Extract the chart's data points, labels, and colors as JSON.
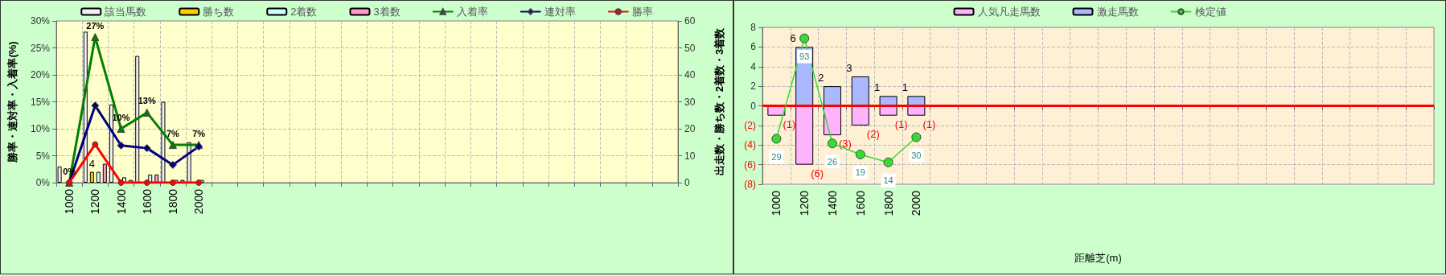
{
  "chart_data": [
    {
      "type": "bar",
      "ylabel": "勝率・連対率・入着率(%)",
      "y2label": "出走数・勝ち数・2着数・3着数",
      "categories": [
        "1000",
        "1200",
        "1400",
        "1600",
        "1800",
        "2000",
        null,
        null,
        null,
        null,
        null,
        null,
        null,
        null,
        null,
        null,
        null,
        null,
        null,
        null,
        null,
        null,
        null,
        null
      ],
      "series": [
        {
          "name": "該当馬数",
          "axis": "y2",
          "color": "#f2f2f2",
          "values": [
            6,
            56,
            29,
            47,
            30,
            15,
            null,
            null,
            null,
            null,
            null,
            null,
            null,
            null,
            null,
            null,
            null,
            null,
            null,
            null,
            null,
            null,
            null,
            null
          ]
        },
        {
          "name": "勝ち数",
          "axis": "y2",
          "color": "#ffcc00",
          "values": [
            0,
            4,
            0,
            0,
            0,
            0,
            null,
            null,
            null,
            null,
            null,
            null,
            null,
            null,
            null,
            null,
            null,
            null,
            null,
            null,
            null,
            null,
            null,
            null
          ],
          "value_labels": [
            null,
            "4",
            null,
            null,
            null,
            null,
            null,
            null,
            null,
            null,
            null,
            null,
            null,
            null,
            null,
            null,
            null,
            null,
            null,
            null,
            null,
            null,
            null,
            null
          ]
        },
        {
          "name": "2着数",
          "axis": "y2",
          "color": "#ccffff",
          "values": [
            0,
            4,
            2,
            3,
            1,
            1,
            null,
            null,
            null,
            null,
            null,
            null,
            null,
            null,
            null,
            null,
            null,
            null,
            null,
            null,
            null,
            null,
            null,
            null
          ]
        },
        {
          "name": "3着数",
          "axis": "y2",
          "color": "#ff99cc",
          "values": [
            0,
            7,
            1,
            3,
            1,
            0,
            null,
            null,
            null,
            null,
            null,
            null,
            null,
            null,
            null,
            null,
            null,
            null,
            null,
            null,
            null,
            null,
            null,
            null
          ]
        },
        {
          "name": "入着率",
          "type": "line",
          "marker": "triangle",
          "color": "#008000",
          "values": [
            0,
            27,
            10,
            13,
            7,
            7,
            null,
            null,
            null,
            null,
            null,
            null,
            null,
            null,
            null,
            null,
            null,
            null,
            null,
            null,
            null,
            null,
            null,
            null
          ],
          "value_labels": [
            "0%",
            "27%",
            "10%",
            "13%",
            "7%",
            "7%",
            null,
            null,
            null,
            null,
            null,
            null,
            null,
            null,
            null,
            null,
            null,
            null,
            null,
            null,
            null,
            null,
            null,
            null
          ]
        },
        {
          "name": "連対率",
          "type": "line",
          "marker": "diamond",
          "color": "#000080",
          "values": [
            0,
            14.3,
            6.9,
            6.4,
            3.3,
            6.7,
            null,
            null,
            null,
            null,
            null,
            null,
            null,
            null,
            null,
            null,
            null,
            null,
            null,
            null,
            null,
            null,
            null,
            null
          ]
        },
        {
          "name": "勝率",
          "type": "line",
          "marker": "circle",
          "color": "#ff0000",
          "values": [
            0,
            7.1,
            0,
            0,
            0,
            0,
            null,
            null,
            null,
            null,
            null,
            null,
            null,
            null,
            null,
            null,
            null,
            null,
            null,
            null,
            null,
            null,
            null,
            null
          ]
        }
      ],
      "ylim": [
        0,
        30
      ],
      "yticks": [
        {
          "value": 0,
          "label": "0%"
        },
        {
          "value": 5,
          "label": "5%"
        },
        {
          "value": 10,
          "label": "10%"
        },
        {
          "value": 15,
          "label": "15%"
        },
        {
          "value": 20,
          "label": "20%"
        },
        {
          "value": 25,
          "label": "25%"
        },
        {
          "value": 30,
          "label": "30%"
        }
      ],
      "y2lim": [
        0,
        60
      ],
      "y2ticks": [
        0,
        10,
        20,
        30,
        40,
        50,
        60
      ],
      "grid": true,
      "legend": "top"
    },
    {
      "type": "bar",
      "xlabel": "距離芝(m)",
      "stacked": true,
      "categories": [
        "1000",
        "1200",
        "1400",
        "1600",
        "1800",
        "2000",
        null,
        null,
        null,
        null,
        null,
        null,
        null,
        null,
        null,
        null,
        null,
        null,
        null,
        null,
        null,
        null,
        null,
        null
      ],
      "series": [
        {
          "name": "人気凡走馬数",
          "color": "#ffb3ff",
          "values": [
            -1,
            -6,
            -3,
            -2,
            -1,
            -1,
            null,
            null,
            null,
            null,
            null,
            null,
            null,
            null,
            null,
            null,
            null,
            null,
            null,
            null,
            null,
            null,
            null,
            null
          ],
          "value_labels": [
            "(1)",
            "(6)",
            "(3)",
            "(2)",
            "(1)",
            "(1)",
            null,
            null,
            null,
            null,
            null,
            null,
            null,
            null,
            null,
            null,
            null,
            null,
            null,
            null,
            null,
            null,
            null,
            null
          ]
        },
        {
          "name": "激走馬数",
          "color": "#aab8ff",
          "values": [
            0,
            6,
            2,
            3,
            1,
            1,
            null,
            null,
            null,
            null,
            null,
            null,
            null,
            null,
            null,
            null,
            null,
            null,
            null,
            null,
            null,
            null,
            null,
            null
          ],
          "value_labels": [
            null,
            "6",
            "2",
            "3",
            "1",
            "1",
            null,
            null,
            null,
            null,
            null,
            null,
            null,
            null,
            null,
            null,
            null,
            null,
            null,
            null,
            null,
            null,
            null,
            null
          ]
        },
        {
          "name": "検定値",
          "type": "line",
          "marker": "circle",
          "axis": "y2",
          "color": "#33dd33",
          "values": [
            29,
            93,
            26,
            19,
            14,
            30,
            null,
            null,
            null,
            null,
            null,
            null,
            null,
            null,
            null,
            null,
            null,
            null,
            null,
            null,
            null,
            null,
            null,
            null
          ],
          "value_labels": [
            "29",
            "93",
            "26",
            "19",
            "14",
            "30",
            null,
            null,
            null,
            null,
            null,
            null,
            null,
            null,
            null,
            null,
            null,
            null,
            null,
            null,
            null,
            null,
            null,
            null
          ]
        }
      ],
      "ylim": [
        -8,
        8
      ],
      "yticks": [
        {
          "value": -8,
          "label": "(8)"
        },
        {
          "value": -6,
          "label": "(6)"
        },
        {
          "value": -4,
          "label": "(4)"
        },
        {
          "value": -2,
          "label": "(2)"
        },
        0,
        2,
        4,
        6,
        8
      ],
      "y2lim": [
        0,
        100
      ],
      "ref_lines": [
        {
          "axis": "y",
          "value": 0,
          "color": "#ff0000"
        }
      ],
      "grid": true,
      "legend": "top"
    }
  ]
}
